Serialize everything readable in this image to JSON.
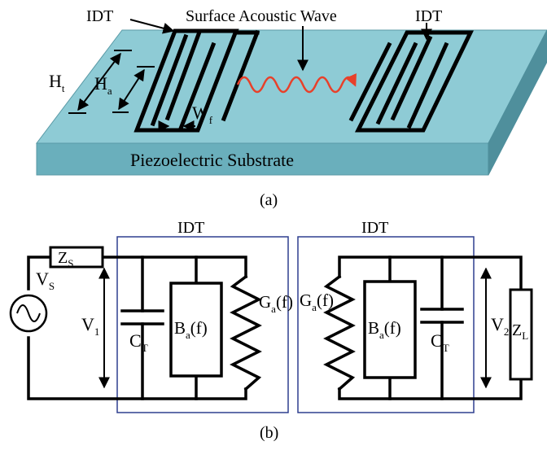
{
  "panel_a": {
    "idt_left_label": "IDT",
    "idt_right_label": "IDT",
    "wave_label": "Surface Acoustic Wave",
    "substrate_label": "Piezoelectric Substrate",
    "ht": {
      "main": "H",
      "sub": "t"
    },
    "ha": {
      "main": "H",
      "sub": "a"
    },
    "wf": {
      "main": "W",
      "sub": "f"
    },
    "caption": "(a)",
    "colors": {
      "substrate_top": "#8ecbd5",
      "substrate_front": "#6aafbc",
      "substrate_side": "#4f8f9c",
      "wave": "#e8402a"
    }
  },
  "panel_b": {
    "idt_left_label": "IDT",
    "idt_right_label": "IDT",
    "zs": {
      "main": "Z",
      "sub": "S"
    },
    "vs": {
      "main": "V",
      "sub": "S"
    },
    "v1": {
      "main": "V",
      "sub": "1"
    },
    "ct_left": {
      "main": "C",
      "sub": "T"
    },
    "ba_left": {
      "main": "B",
      "sub": "a",
      "tail": "(f)"
    },
    "ga_left": {
      "main": "G",
      "sub": "a",
      "tail": "(f)"
    },
    "ga_right": {
      "main": "G",
      "sub": "a",
      "tail": "(f)"
    },
    "ba_right": {
      "main": "B",
      "sub": "a",
      "tail": "(f)"
    },
    "ct_right": {
      "main": "C",
      "sub": "T"
    },
    "v2": {
      "main": "V",
      "sub": "2"
    },
    "zl": {
      "main": "Z",
      "sub": "L"
    },
    "caption": "(b)",
    "colors": {
      "idt_box": "#2e3f8f"
    }
  }
}
